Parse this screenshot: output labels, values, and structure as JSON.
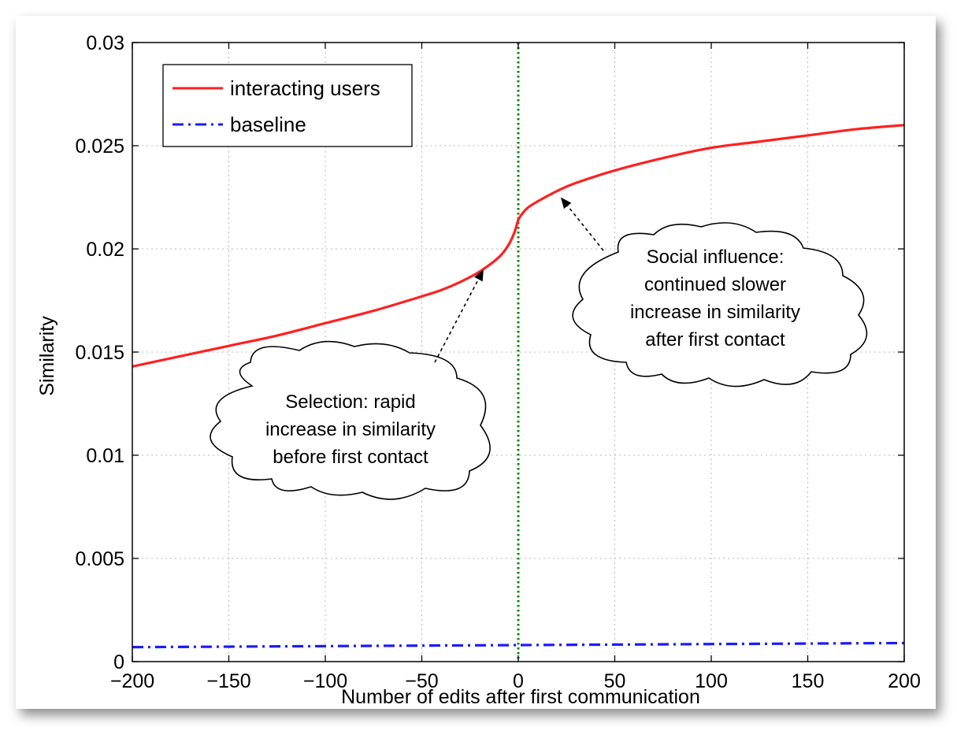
{
  "chart_data": {
    "type": "line",
    "title": "",
    "xlabel": "Number of edits after first communication",
    "ylabel": "Similarity",
    "xlim": [
      -200,
      200
    ],
    "ylim": [
      0,
      0.03
    ],
    "x_ticks": [
      -200,
      -150,
      -100,
      -50,
      0,
      50,
      100,
      150,
      200
    ],
    "x_tick_labels": [
      "−200",
      "−150",
      "−100",
      "−50",
      "0",
      "50",
      "100",
      "150",
      "200"
    ],
    "y_ticks": [
      0,
      0.005,
      0.01,
      0.015,
      0.02,
      0.025,
      0.03
    ],
    "y_tick_labels": [
      "0",
      "0.005",
      "0.01",
      "0.015",
      "0.02",
      "0.025",
      "0.03"
    ],
    "grid": true,
    "legend_position": "top-left",
    "series": [
      {
        "name": "interacting users",
        "color": "#ff2020",
        "style": "solid",
        "x": [
          -200,
          -175,
          -150,
          -125,
          -100,
          -75,
          -50,
          -40,
          -30,
          -20,
          -10,
          -5,
          -2,
          0,
          2,
          5,
          10,
          20,
          30,
          50,
          75,
          100,
          125,
          150,
          175,
          200
        ],
        "y": [
          0.0143,
          0.0148,
          0.0153,
          0.0158,
          0.0164,
          0.017,
          0.0177,
          0.018,
          0.0184,
          0.0189,
          0.0196,
          0.0202,
          0.0208,
          0.0214,
          0.0217,
          0.022,
          0.0223,
          0.0228,
          0.0232,
          0.0238,
          0.0244,
          0.0249,
          0.0252,
          0.0255,
          0.0258,
          0.026
        ]
      },
      {
        "name": "baseline",
        "color": "#1a1aff",
        "style": "dash-dot",
        "x": [
          -200,
          -100,
          0,
          100,
          200
        ],
        "y": [
          0.0007,
          0.00075,
          0.0008,
          0.00085,
          0.0009
        ]
      }
    ],
    "reference_line": {
      "x": 0,
      "color": "#008800",
      "style": "dotted"
    },
    "annotations": [
      {
        "lines": [
          "Selection: rapid",
          "increase in similarity",
          "before first contact"
        ],
        "arrow_to": {
          "x": -18,
          "y": 0.019
        }
      },
      {
        "lines": [
          "Social influence:",
          "continued slower",
          "increase in similarity",
          "after first contact"
        ],
        "arrow_to": {
          "x": 22,
          "y": 0.0225
        }
      }
    ]
  }
}
